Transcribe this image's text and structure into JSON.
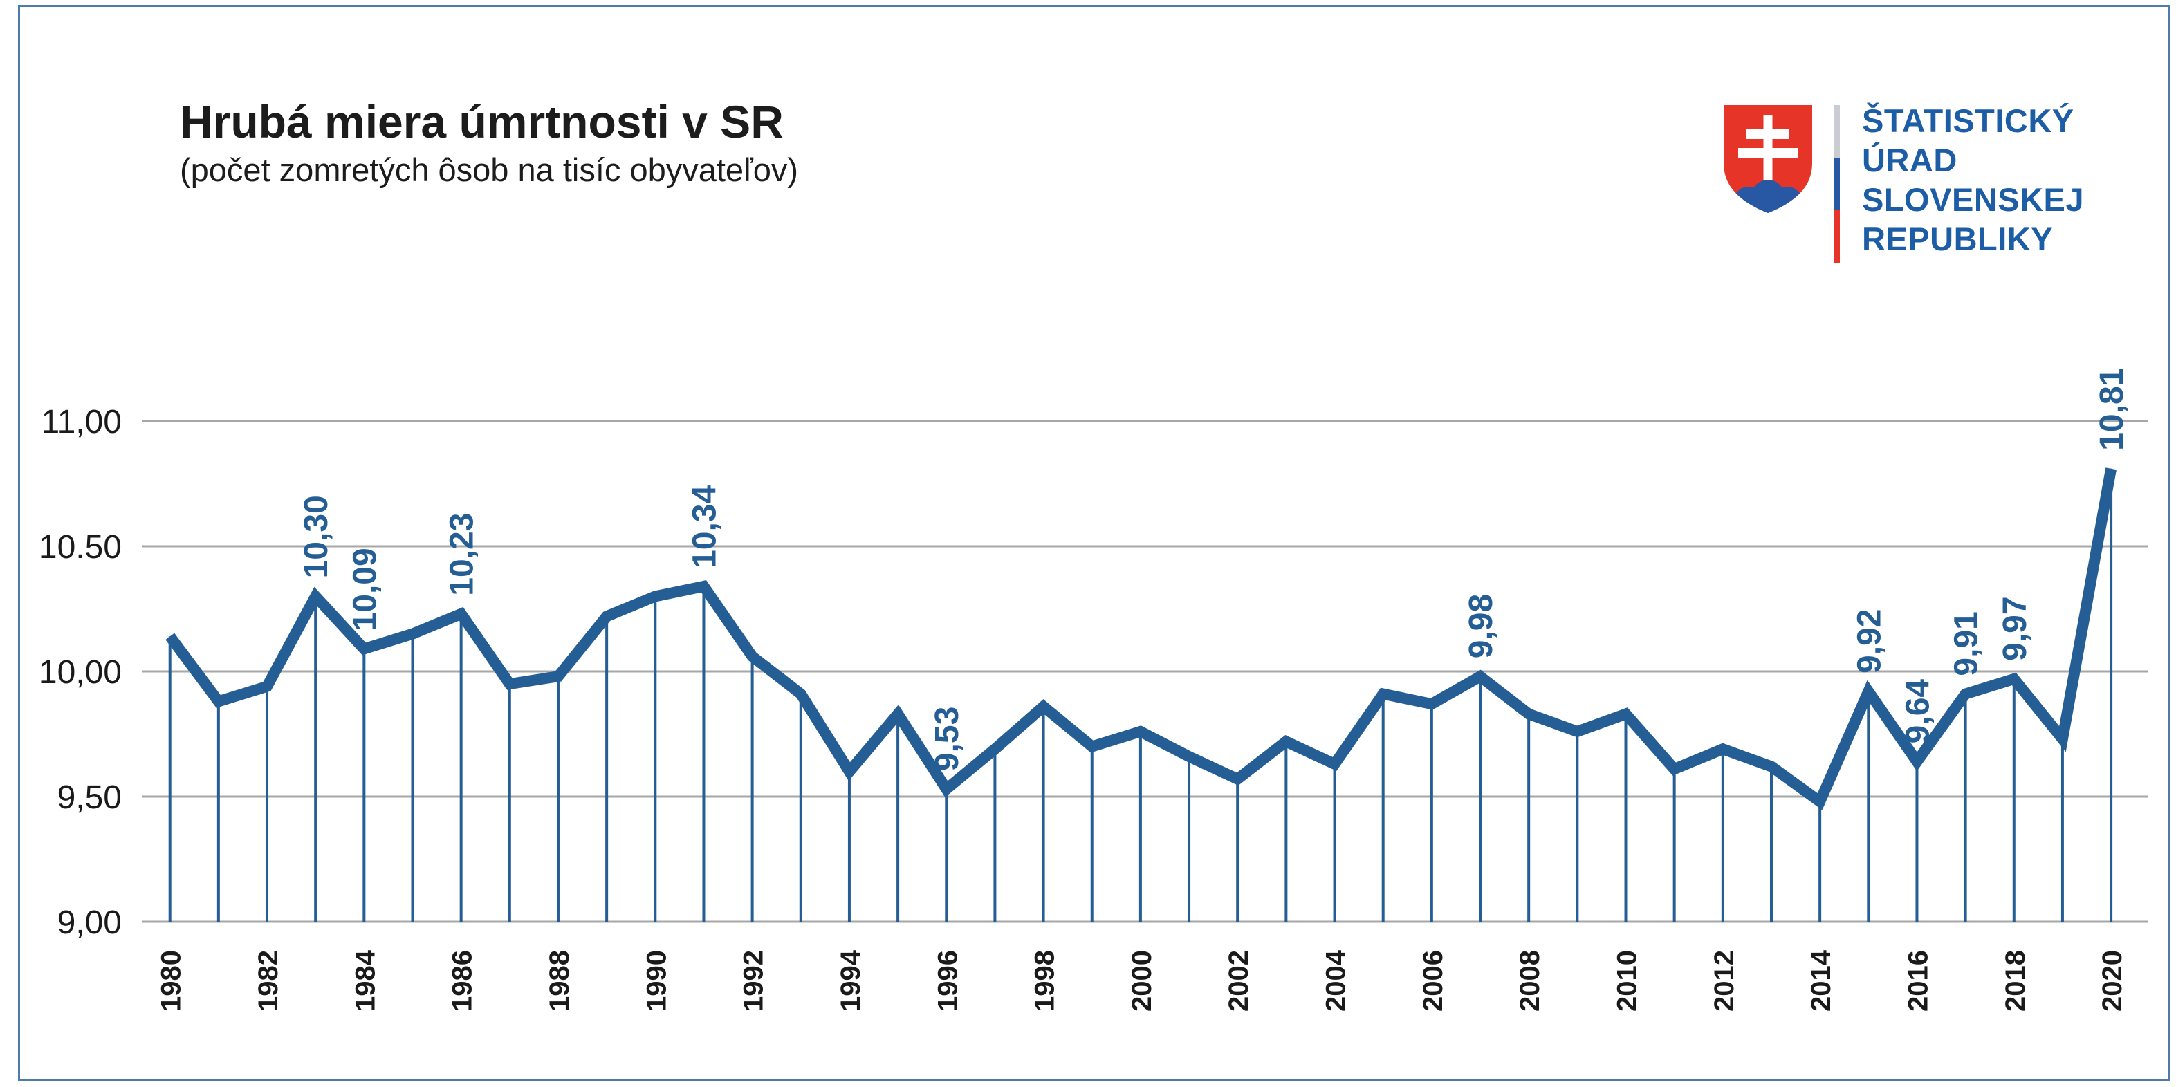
{
  "page": {
    "background": "#ffffff",
    "frame_color": "#4d7ca8"
  },
  "header": {
    "title": "Hrubá miera úmrtnosti v SR",
    "subtitle": "(počet zomretých ôsob na tisíc obyvateľov)"
  },
  "logo": {
    "org_lines": [
      "ŠTATISTICKÝ",
      "ÚRAD",
      "SLOVENSKEJ",
      "REPUBLIKY"
    ],
    "text_color": "#1d5da6",
    "shield_red": "#e63429",
    "shield_blue": "#2857a4",
    "cross_white": "#ffffff",
    "bar_colors": [
      "#c9cdd1",
      "#2857a4",
      "#e63429"
    ]
  },
  "chart_data": {
    "type": "line",
    "title": "Hrubá miera úmrtnosti v SR",
    "subtitle": "(počet zomretých ôsob na tisíc obyvateľov)",
    "x": [
      1980,
      1981,
      1982,
      1983,
      1984,
      1985,
      1986,
      1987,
      1988,
      1989,
      1990,
      1991,
      1992,
      1993,
      1994,
      1995,
      1996,
      1997,
      1998,
      1999,
      2000,
      2001,
      2002,
      2003,
      2004,
      2005,
      2006,
      2007,
      2008,
      2009,
      2010,
      2011,
      2012,
      2013,
      2014,
      2015,
      2016,
      2017,
      2018,
      2019,
      2020
    ],
    "values": [
      10.14,
      9.88,
      9.94,
      10.3,
      10.09,
      10.15,
      10.23,
      9.95,
      9.98,
      10.22,
      10.3,
      10.34,
      10.06,
      9.91,
      9.6,
      9.83,
      9.53,
      9.69,
      9.86,
      9.7,
      9.76,
      9.66,
      9.57,
      9.72,
      9.63,
      9.91,
      9.87,
      9.98,
      9.83,
      9.76,
      9.83,
      9.61,
      9.69,
      9.62,
      9.48,
      9.92,
      9.64,
      9.91,
      9.97,
      9.73,
      10.81
    ],
    "point_labels": [
      {
        "year": 1983,
        "label": "10,30"
      },
      {
        "year": 1984,
        "label": "10,09"
      },
      {
        "year": 1986,
        "label": "10,23"
      },
      {
        "year": 1991,
        "label": "10,34"
      },
      {
        "year": 1996,
        "label": "9,53"
      },
      {
        "year": 2007,
        "label": "9,98"
      },
      {
        "year": 2015,
        "label": "9,92"
      },
      {
        "year": 2016,
        "label": "9,64"
      },
      {
        "year": 2017,
        "label": "9,91"
      },
      {
        "year": 2018,
        "label": "9,97"
      },
      {
        "year": 2020,
        "label": "10,81"
      }
    ],
    "y_ticks": [
      {
        "value": 11.0,
        "label": "11,00"
      },
      {
        "value": 10.5,
        "label": "10.50"
      },
      {
        "value": 10.0,
        "label": "10,00"
      },
      {
        "value": 9.5,
        "label": "9,50"
      },
      {
        "value": 9.0,
        "label": "9,00"
      }
    ],
    "x_ticks": [
      1980,
      1982,
      1984,
      1986,
      1988,
      1990,
      1992,
      1994,
      1996,
      1998,
      2000,
      2002,
      2004,
      2006,
      2008,
      2010,
      2012,
      2014,
      2016,
      2018,
      2020
    ],
    "ylim": [
      9.0,
      11.0
    ],
    "grid": true,
    "legend": false,
    "line_color": "#255e94",
    "grid_color": "#a7a7a7",
    "axis_text_color": "#1a1a1a"
  }
}
